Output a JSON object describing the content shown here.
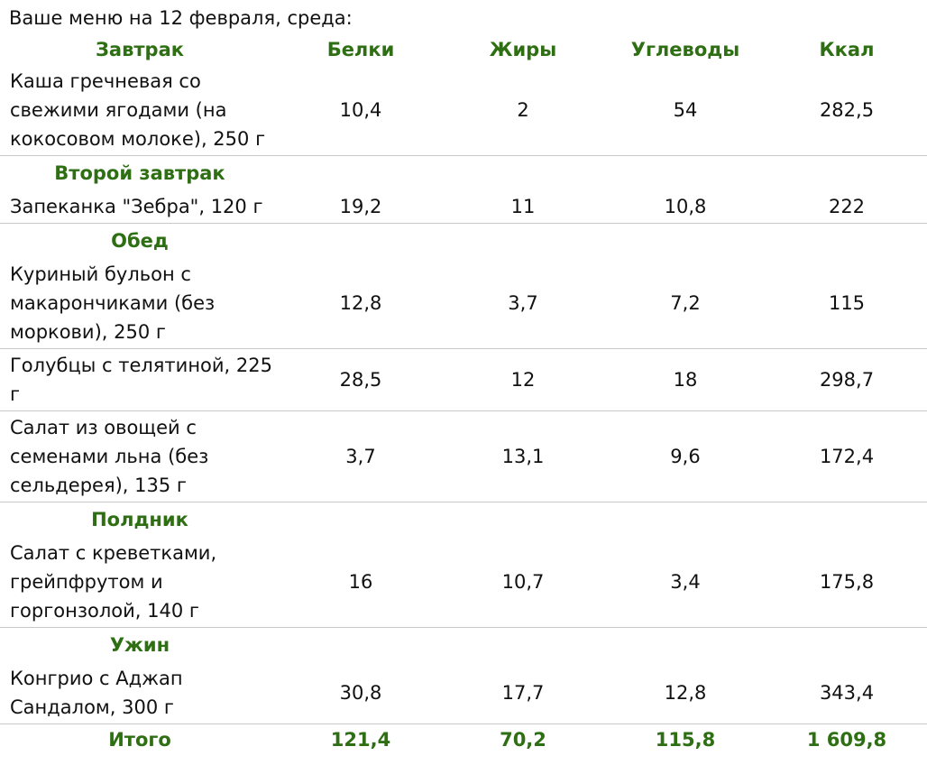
{
  "intro": "Ваше меню на 12 февраля, среда:",
  "headers": {
    "meal": "Завтрак",
    "protein": "Белки",
    "fat": "Жиры",
    "carbs": "Углеводы",
    "kcal": "Ккал"
  },
  "sections": {
    "second_breakfast": "Второй завтрак",
    "lunch": "Обед",
    "snack": "Полдник",
    "dinner": "Ужин"
  },
  "items": [
    {
      "name": "Каша гречневая со свежими ягодами (на кокосовом молоке), 250 г",
      "protein": "10,4",
      "fat": "2",
      "carbs": "54",
      "kcal": "282,5"
    },
    {
      "name": "Запеканка \"Зебра\", 120 г",
      "protein": "19,2",
      "fat": "11",
      "carbs": "10,8",
      "kcal": "222"
    },
    {
      "name": "Куриный бульон с макарончиками (без моркови), 250 г",
      "protein": "12,8",
      "fat": "3,7",
      "carbs": "7,2",
      "kcal": "115"
    },
    {
      "name": "Голубцы с телятиной, 225 г",
      "protein": "28,5",
      "fat": "12",
      "carbs": "18",
      "kcal": "298,7"
    },
    {
      "name": "Салат из овощей с семенами льна (без сельдерея), 135 г",
      "protein": "3,7",
      "fat": "13,1",
      "carbs": "9,6",
      "kcal": "172,4"
    },
    {
      "name": "Салат с креветками, грейпфрутом и горгонзолой, 140 г",
      "protein": "16",
      "fat": "10,7",
      "carbs": "3,4",
      "kcal": "175,8"
    },
    {
      "name": "Конгрио с Аджап Сандалом, 300 г",
      "protein": "30,8",
      "fat": "17,7",
      "carbs": "12,8",
      "kcal": "343,4"
    }
  ],
  "total": {
    "label": "Итого",
    "protein": "121,4",
    "fat": "70,2",
    "carbs": "115,8",
    "kcal": "1 609,8"
  },
  "colors": {
    "heading_green": "#2f6f14",
    "separator": "#c9c9c9"
  }
}
